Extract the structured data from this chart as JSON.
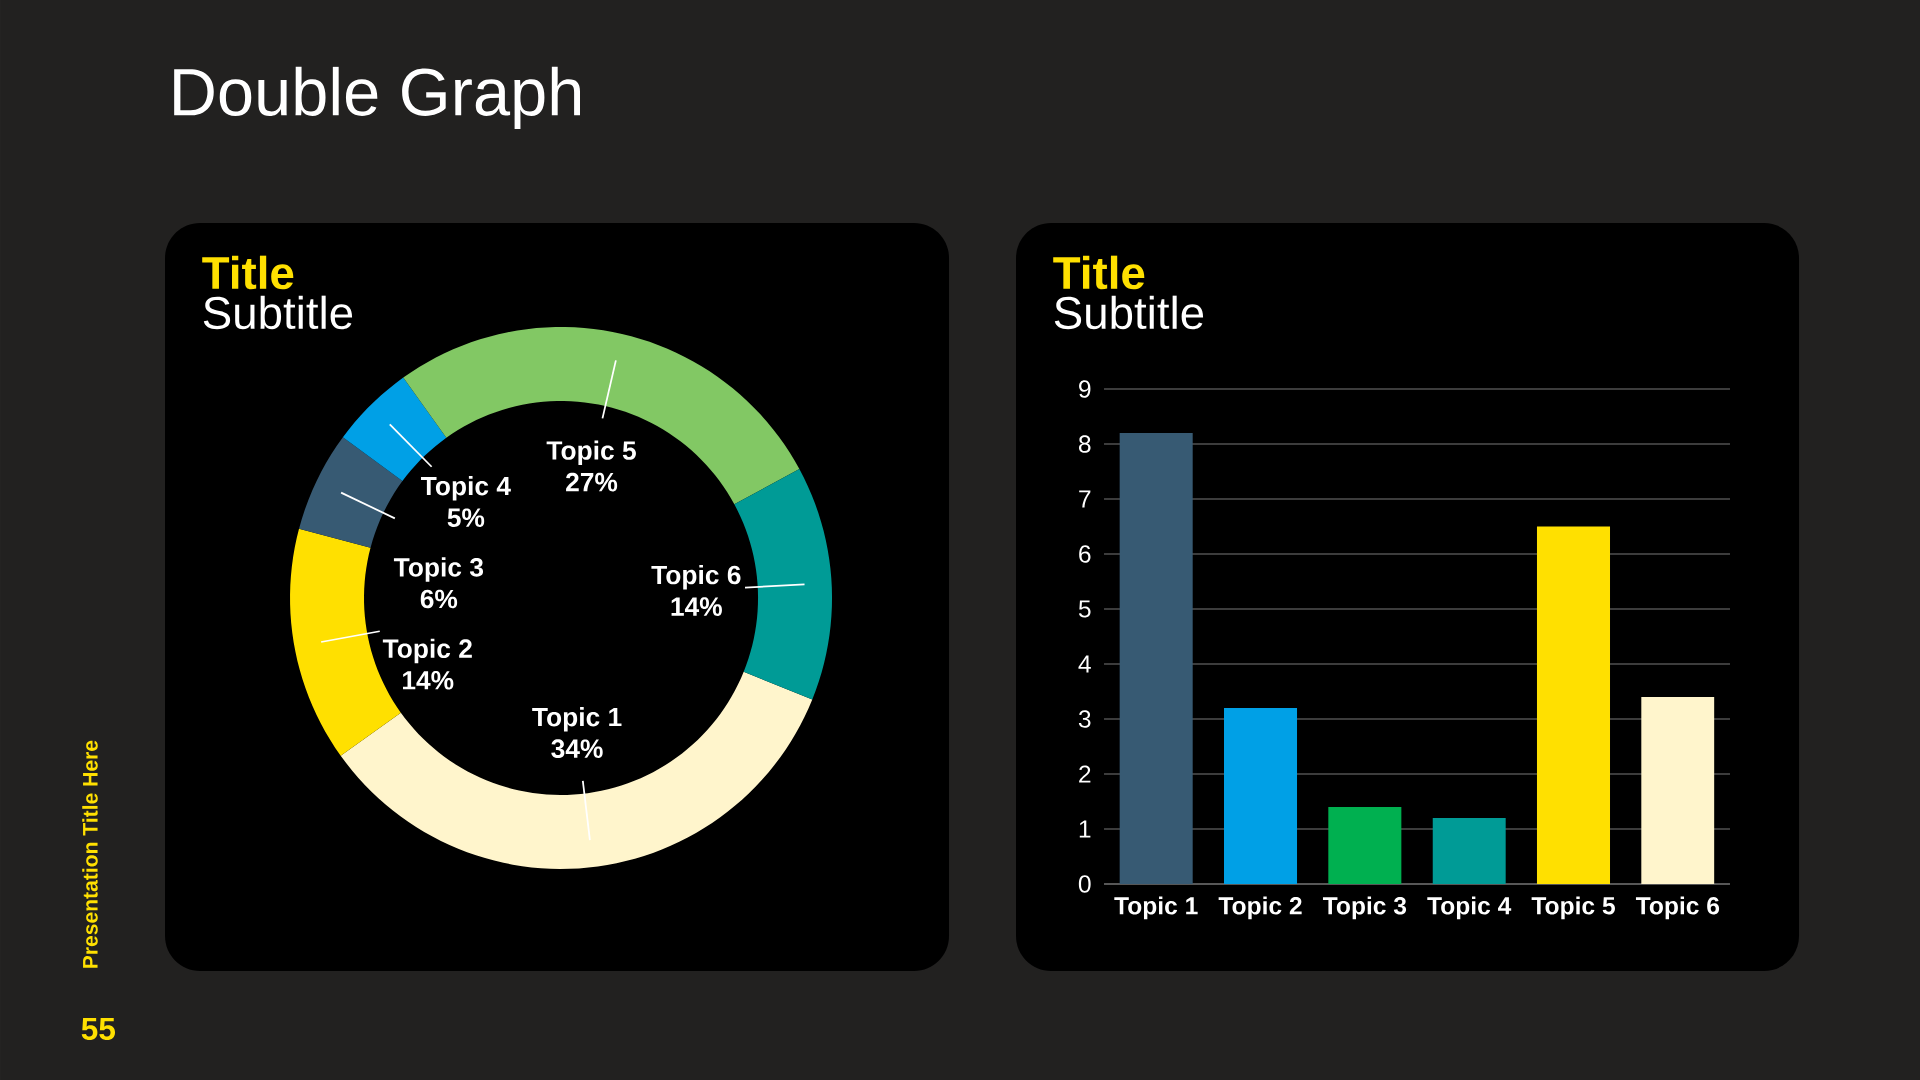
{
  "chart_data": [
    {
      "type": "donut",
      "title": "Title",
      "subtitle": "Subtitle",
      "categories": [
        "Topic 1",
        "Topic 2",
        "Topic 3",
        "Topic 4",
        "Topic 5",
        "Topic 6"
      ],
      "values": [
        34,
        14,
        6,
        5,
        27,
        14
      ],
      "colors": [
        "#fff5cc",
        "#ffe000",
        "#375a73",
        "#00a0e6",
        "#82c864",
        "#009b96"
      ],
      "value_labels": [
        "34%",
        "14%",
        "6%",
        "5%",
        "27%",
        "14%"
      ],
      "annotations": [
        "Double Graph",
        "Presentation Title Here",
        "55"
      ]
    },
    {
      "type": "bar",
      "title": "Title",
      "subtitle": "Subtitle",
      "categories": [
        "Topic 1",
        "Topic 2",
        "Topic 3",
        "Topic 4",
        "Topic 5",
        "Topic 6"
      ],
      "values": [
        8.2,
        3.2,
        1.4,
        1.2,
        6.5,
        3.4
      ],
      "colors": [
        "#375a73",
        "#00a0e6",
        "#00b050",
        "#009b96",
        "#ffe000",
        "#fff5cc"
      ],
      "ylim": [
        0,
        9
      ],
      "yticks": [
        0,
        1,
        2,
        3,
        4,
        5,
        6,
        7,
        8,
        9
      ],
      "grid": "y"
    }
  ]
}
